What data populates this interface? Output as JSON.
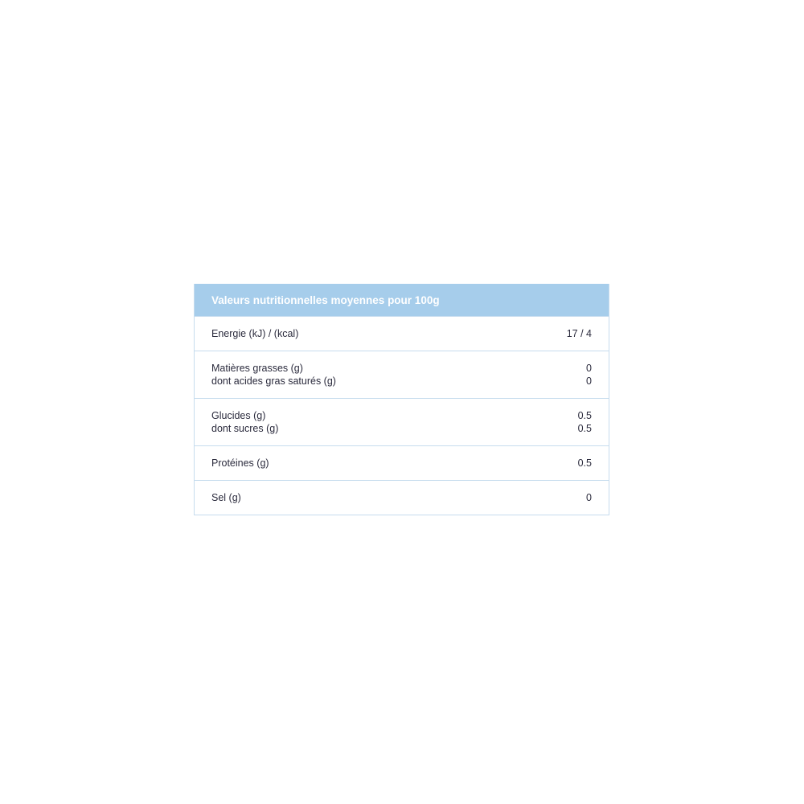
{
  "title": "Valeurs nutritionnelles moyennes pour 100g",
  "colors": {
    "header_bg": "#a6cdeb",
    "border": "#c6dcee",
    "text": "#2b2b3d"
  },
  "rows": [
    {
      "labels": [
        "Energie (kJ) / (kcal)"
      ],
      "values": [
        "17 / 4"
      ]
    },
    {
      "labels": [
        "Matières grasses (g)",
        "dont acides gras saturés (g)"
      ],
      "values": [
        "0",
        "0"
      ]
    },
    {
      "labels": [
        "Glucides (g)",
        "dont sucres (g)"
      ],
      "values": [
        "0.5",
        "0.5"
      ]
    },
    {
      "labels": [
        "Protéines (g)"
      ],
      "values": [
        "0.5"
      ]
    },
    {
      "labels": [
        "Sel (g)"
      ],
      "values": [
        "0"
      ]
    }
  ]
}
